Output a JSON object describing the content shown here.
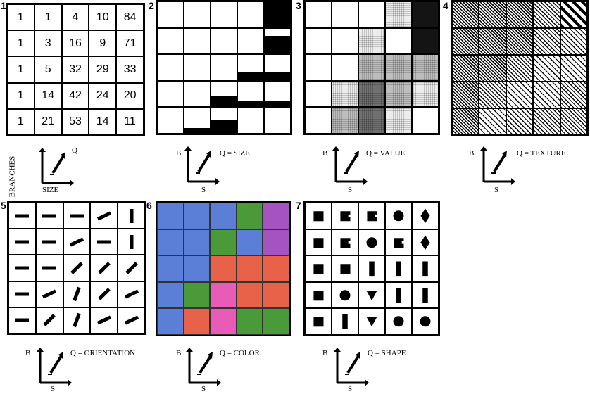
{
  "panel_numbers": [
    "1",
    "2",
    "3",
    "4",
    "5",
    "6",
    "7"
  ],
  "panel1": {
    "values": [
      [
        "1",
        "1",
        "4",
        "10",
        "84"
      ],
      [
        "1",
        "3",
        "16",
        "9",
        "71"
      ],
      [
        "1",
        "5",
        "32",
        "29",
        "33"
      ],
      [
        "1",
        "14",
        "42",
        "24",
        "20"
      ],
      [
        "1",
        "21",
        "53",
        "14",
        "11"
      ]
    ],
    "key": {
      "y": "BRANCHES",
      "x": "SIZE",
      "q": "Q"
    }
  },
  "panel2": {
    "black_fraction": [
      [
        0,
        0,
        0,
        0,
        1.0
      ],
      [
        0,
        0,
        0,
        0,
        0.71
      ],
      [
        0,
        0,
        0,
        0.29,
        0.33
      ],
      [
        0,
        0,
        0.42,
        0.24,
        0.2
      ],
      [
        0,
        0.21,
        0.53,
        0,
        0
      ]
    ],
    "key": {
      "b": "B",
      "s": "S",
      "q": "Q = SIZE"
    }
  },
  "panel3": {
    "shade": [
      [
        0,
        0,
        0,
        1,
        4
      ],
      [
        0,
        0,
        1,
        0,
        4
      ],
      [
        0,
        0,
        2,
        2,
        2
      ],
      [
        0,
        1,
        3,
        2,
        1
      ],
      [
        0,
        2,
        3,
        1,
        0
      ]
    ],
    "shade_colors": [
      "#ffffff",
      "#ececec",
      "#bdbdbd",
      "#707070",
      "#141414"
    ],
    "key": {
      "b": "B",
      "s": "S",
      "q": "Q = VALUE"
    }
  },
  "panel4": {
    "texture": [
      [
        0,
        0,
        0,
        1,
        4
      ],
      [
        0,
        0,
        0,
        1,
        3
      ],
      [
        0,
        0,
        1,
        2,
        2
      ],
      [
        0,
        1,
        2,
        2,
        1
      ],
      [
        0,
        2,
        3,
        1,
        1
      ]
    ],
    "key": {
      "b": "B",
      "s": "S",
      "q": "Q = TEXTURE"
    }
  },
  "panel5": {
    "angles": [
      [
        0,
        0,
        0,
        25,
        90
      ],
      [
        0,
        0,
        25,
        0,
        90
      ],
      [
        0,
        0,
        45,
        45,
        45
      ],
      [
        0,
        25,
        70,
        45,
        25
      ],
      [
        0,
        45,
        70,
        25,
        25
      ]
    ],
    "key": {
      "b": "B",
      "s": "S",
      "q": "Q = ORIENTATION"
    }
  },
  "panel6": {
    "colors": [
      [
        "#5b7fd6",
        "#5b7fd6",
        "#5b7fd6",
        "#4a9a3a",
        "#a454c0"
      ],
      [
        "#5b7fd6",
        "#5b7fd6",
        "#4a9a3a",
        "#5b7fd6",
        "#a454c0"
      ],
      [
        "#5b7fd6",
        "#5b7fd6",
        "#e8624a",
        "#e8624a",
        "#e8624a"
      ],
      [
        "#5b7fd6",
        "#4a9a3a",
        "#e85cb8",
        "#e8624a",
        "#e8624a"
      ],
      [
        "#5b7fd6",
        "#e8624a",
        "#e85cb8",
        "#4a9a3a",
        "#4a9a3a"
      ]
    ],
    "key": {
      "b": "B",
      "s": "S",
      "q": "Q = COLOR"
    }
  },
  "panel7": {
    "shapes": [
      [
        "square",
        "square-notch",
        "square-notch",
        "circle",
        "diamond"
      ],
      [
        "square",
        "square-notch",
        "circle",
        "square-notch",
        "diamond"
      ],
      [
        "square",
        "square",
        "bar",
        "bar",
        "bar"
      ],
      [
        "square",
        "circle",
        "triangle",
        "bar",
        "bar"
      ],
      [
        "square",
        "bar",
        "triangle",
        "circle",
        "circle"
      ]
    ],
    "key": {
      "b": "B",
      "s": "S",
      "q": "Q = SHAPE"
    }
  }
}
